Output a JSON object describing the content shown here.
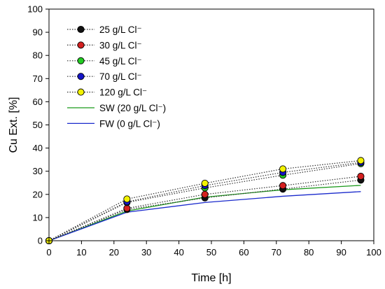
{
  "chart_data": {
    "type": "line",
    "xlabel": "Time [h]",
    "ylabel": "Cu Ext. [%]",
    "xlim": [
      0,
      100
    ],
    "ylim": [
      0,
      100
    ],
    "xticks": [
      0,
      10,
      20,
      30,
      40,
      50,
      60,
      70,
      80,
      90,
      100
    ],
    "yticks": [
      0,
      10,
      20,
      30,
      40,
      50,
      60,
      70,
      80,
      90,
      100
    ],
    "grid": false,
    "legend_position": "top-left",
    "series": [
      {
        "name": "25 g/L Cl⁻",
        "style": "dotted-marker",
        "color": "#111111",
        "x": [
          0,
          24,
          48,
          72,
          96
        ],
        "y": [
          0,
          13.5,
          18.5,
          22.3,
          26.2
        ]
      },
      {
        "name": "30 g/L Cl⁻",
        "style": "dotted-marker",
        "color": "#d42020",
        "x": [
          0,
          24,
          48,
          72,
          96
        ],
        "y": [
          0,
          14,
          20,
          23.8,
          27.8
        ]
      },
      {
        "name": "45 g/L Cl⁻",
        "style": "dotted-marker",
        "color": "#22cc22",
        "x": [
          0,
          24,
          48,
          72,
          96
        ],
        "y": [
          0,
          16.5,
          22.8,
          28.3,
          33.3
        ]
      },
      {
        "name": "70 g/L Cl⁻",
        "style": "dotted-marker",
        "color": "#1515c8",
        "x": [
          0,
          24,
          48,
          72,
          96
        ],
        "y": [
          0,
          16.8,
          23.8,
          29.5,
          33.8
        ]
      },
      {
        "name": "120 g/L Cl⁻",
        "style": "dotted-marker",
        "color": "#f2f200",
        "x": [
          0,
          24,
          48,
          72,
          96
        ],
        "y": [
          0,
          18,
          24.8,
          31,
          34.6
        ]
      },
      {
        "name": "SW (20 g/L Cl⁻)",
        "style": "solid-line",
        "color": "#1a9a1a",
        "x": [
          0,
          24,
          48,
          72,
          96
        ],
        "y": [
          0,
          12.8,
          18.8,
          22,
          23.9
        ]
      },
      {
        "name": "FW (0 g/L Cl⁻)",
        "style": "solid-line",
        "color": "#1a2acc",
        "x": [
          0,
          24,
          48,
          72,
          96
        ],
        "y": [
          0,
          12.3,
          16.5,
          19.2,
          21.2
        ]
      }
    ]
  }
}
